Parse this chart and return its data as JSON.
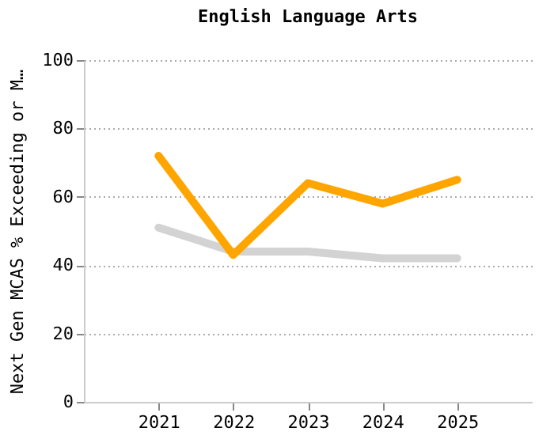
{
  "chart_data": {
    "type": "line",
    "title": "English Language Arts",
    "ylabel": "Next Gen MCAS % Exceeding or M…",
    "x": [
      2021,
      2022,
      2023,
      2024,
      2025
    ],
    "series": [
      {
        "color": "#d3d3d3",
        "values": [
          51,
          44,
          44,
          42,
          42
        ]
      },
      {
        "color": "#ffa500",
        "values": [
          72,
          43,
          64,
          58,
          65
        ]
      }
    ],
    "xlim": [
      2020,
      2026
    ],
    "xticks": [
      2021,
      2022,
      2023,
      2024,
      2025
    ],
    "ylim": [
      0,
      100
    ],
    "yticks": [
      0,
      20,
      40,
      60,
      80,
      100
    ],
    "grid": "y",
    "marker": "none",
    "line_style": "solid"
  }
}
